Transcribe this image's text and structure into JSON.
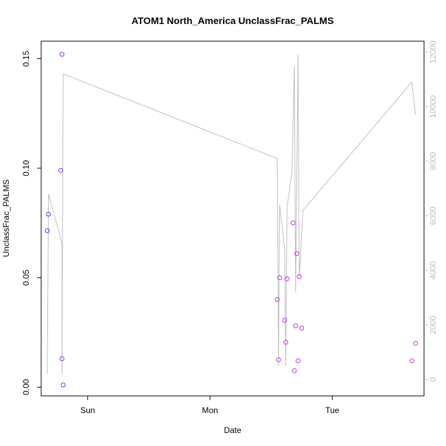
{
  "chart_data": {
    "type": "scatter",
    "title": "ATOM1 North_America UnclassFrac_PALMS",
    "xlabel": "Date",
    "ylabel": "UnclassFrac_PALMS",
    "x_tick_labels": [
      "Sun",
      "Mon",
      "Tue"
    ],
    "x_ticks_day": [
      1,
      2,
      3
    ],
    "xlim_day": [
      0.62,
      3.75
    ],
    "y_left": {
      "ylim": [
        -0.004,
        0.158
      ],
      "ticks": [
        0.0,
        0.05,
        0.1,
        0.15
      ],
      "tick_labels": [
        "0.00",
        "0.05",
        "0.10",
        "0.15"
      ]
    },
    "y_right": {
      "ylim": [
        -600,
        12400
      ],
      "ticks": [
        0,
        2000,
        4000,
        6000,
        8000,
        10000,
        12000
      ],
      "tick_labels": [
        "0",
        "2000",
        "4000",
        "6000",
        "8000",
        "10000",
        "12000"
      ],
      "color": "#bdbdbd"
    },
    "points_comment_units": "x in days (Sun=1, Mon=2, Tue=3), y = UnclassFrac_PALMS",
    "points": [
      {
        "x": 0.67,
        "y": 0.0715,
        "color": "#7b2cf0"
      },
      {
        "x": 0.68,
        "y": 0.079,
        "color": "#7b2cf0"
      },
      {
        "x": 0.78,
        "y": 0.099,
        "color": "#7b2cf0"
      },
      {
        "x": 0.79,
        "y": 0.152,
        "color": "#7b2cf0"
      },
      {
        "x": 0.79,
        "y": 0.013,
        "color": "#7b2cf0"
      },
      {
        "x": 0.8,
        "y": 0.001,
        "color": "#7b2cf0"
      },
      {
        "x": 2.55,
        "y": 0.04,
        "color": "#c22cf0"
      },
      {
        "x": 2.56,
        "y": 0.0125,
        "color": "#c22cf0"
      },
      {
        "x": 2.57,
        "y": 0.05,
        "color": "#c22cf0"
      },
      {
        "x": 2.61,
        "y": 0.0305,
        "color": "#c22cf0"
      },
      {
        "x": 2.62,
        "y": 0.0205,
        "color": "#c22cf0"
      },
      {
        "x": 2.63,
        "y": 0.0495,
        "color": "#c22cf0"
      },
      {
        "x": 2.68,
        "y": 0.075,
        "color": "#c22cf0"
      },
      {
        "x": 2.69,
        "y": 0.0075,
        "color": "#c22cf0"
      },
      {
        "x": 2.7,
        "y": 0.028,
        "color": "#c22cf0"
      },
      {
        "x": 2.71,
        "y": 0.061,
        "color": "#c22cf0"
      },
      {
        "x": 2.72,
        "y": 0.012,
        "color": "#c22cf0"
      },
      {
        "x": 2.73,
        "y": 0.0505,
        "color": "#c22cf0"
      },
      {
        "x": 2.75,
        "y": 0.027,
        "color": "#c22cf0"
      },
      {
        "x": 3.65,
        "y": 0.012,
        "color": "#e22cf0"
      },
      {
        "x": 3.68,
        "y": 0.02,
        "color": "#e22cf0"
      }
    ],
    "line_series": {
      "axis": "right",
      "color": "#bdbdbd",
      "x": [
        0.67,
        0.68,
        0.79,
        0.79,
        0.8,
        2.55,
        2.56,
        2.57,
        2.61,
        2.62,
        2.63,
        2.67,
        2.69,
        2.7,
        2.72,
        2.73,
        2.74,
        2.76,
        3.65,
        3.68
      ],
      "y": [
        200,
        6800,
        5000,
        200,
        11200,
        8100,
        500,
        6400,
        4800,
        500,
        6300,
        7600,
        11500,
        3200,
        11900,
        3800,
        4400,
        6200,
        10900,
        9700
      ]
    }
  }
}
